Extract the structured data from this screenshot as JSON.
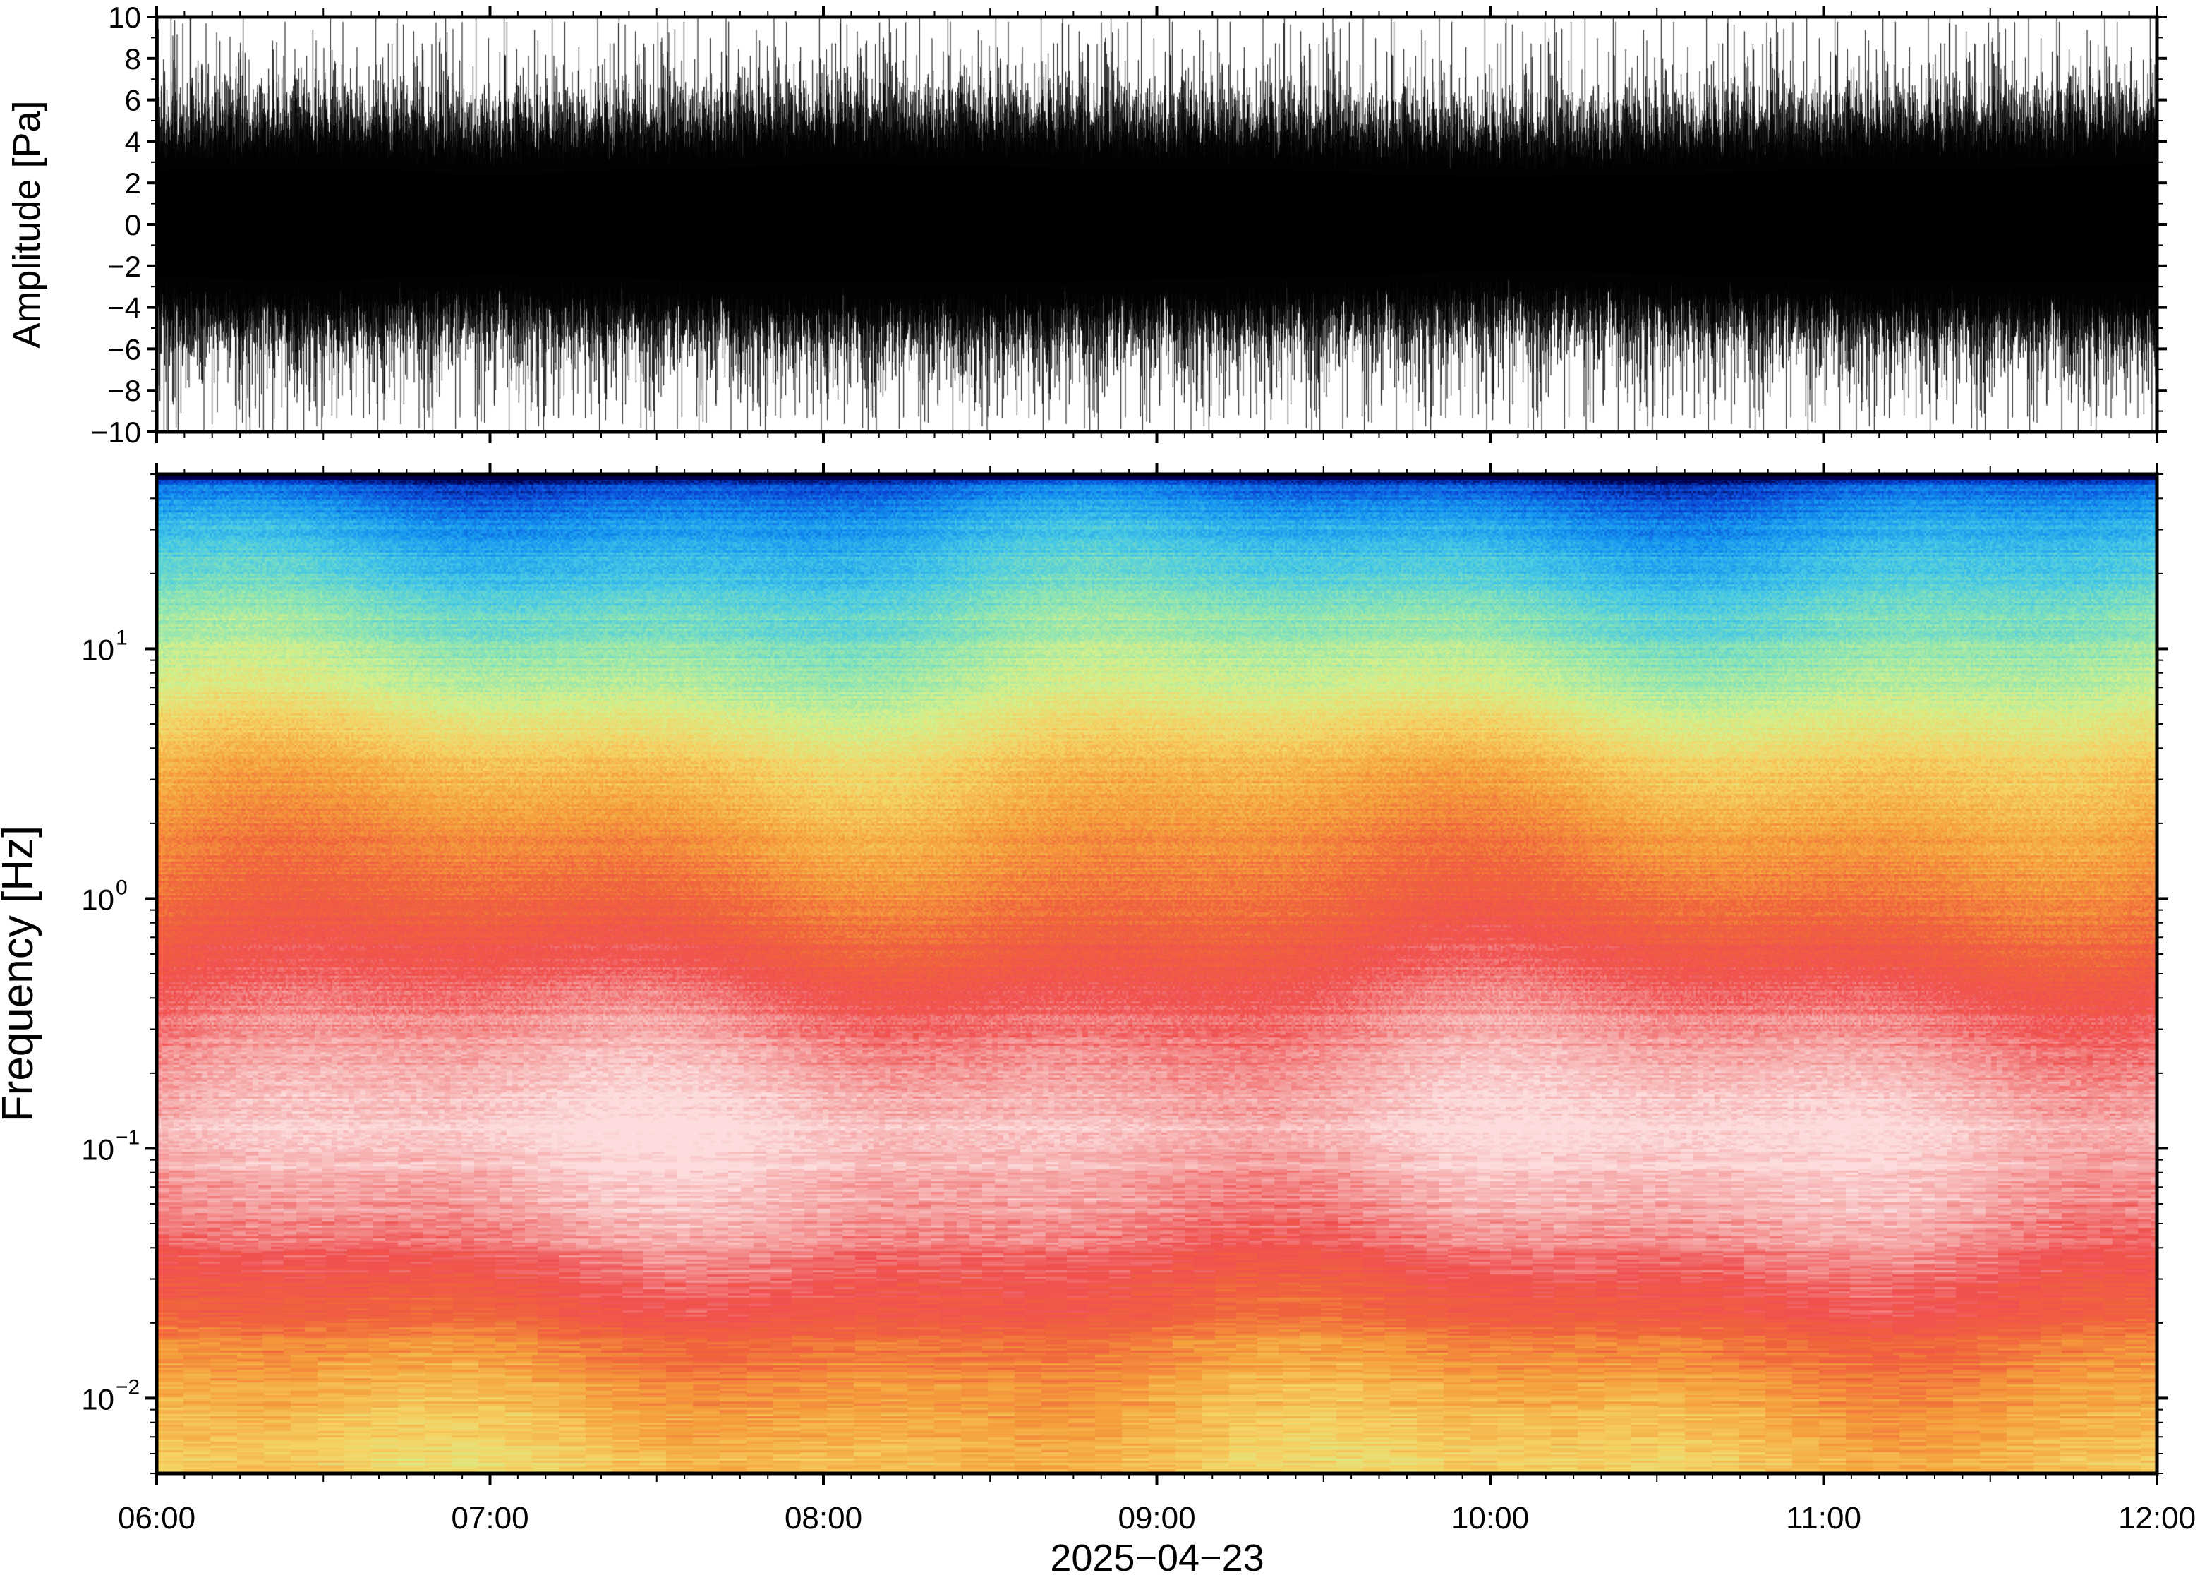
{
  "chart_data": [
    {
      "type": "line",
      "panel": "waveform",
      "ylabel": "Amplitude [Pa]",
      "ylim": [
        -10,
        10
      ],
      "yticks": [
        "10",
        "8",
        "6",
        "4",
        "2",
        "0",
        "−2",
        "−4",
        "−6",
        "−8",
        "−10"
      ],
      "ytick_values": [
        10,
        8,
        6,
        4,
        2,
        0,
        -2,
        -4,
        -6,
        -8,
        -10
      ],
      "x_range": [
        "06:00",
        "12:00"
      ],
      "envelope": {
        "times": [
          "06:00",
          "06:30",
          "07:00",
          "07:30",
          "08:00",
          "08:30",
          "09:00",
          "09:30",
          "10:00",
          "10:30",
          "11:00",
          "11:30",
          "12:00"
        ],
        "core_amplitude": [
          3.2,
          3.4,
          3.0,
          3.3,
          3.6,
          3.5,
          3.3,
          3.2,
          2.8,
          3.0,
          3.3,
          3.4,
          3.6
        ],
        "peak_amplitude": [
          10,
          10,
          10,
          10,
          10,
          10,
          10,
          10,
          10,
          10,
          10,
          10,
          10
        ]
      },
      "line_color": "#000000"
    },
    {
      "type": "heatmap",
      "panel": "spectrogram",
      "ylabel": "Frequency [Hz]",
      "xlabel": "2025−04−23",
      "yscale": "log",
      "ylim": [
        0.005,
        50
      ],
      "yticks": [
        {
          "value": 10,
          "base": "10",
          "exp": "1"
        },
        {
          "value": 1,
          "base": "10",
          "exp": "0"
        },
        {
          "value": 0.1,
          "base": "10",
          "exp": "−1"
        },
        {
          "value": 0.01,
          "base": "10",
          "exp": "−2"
        }
      ],
      "x_range": [
        "06:00",
        "12:00"
      ],
      "xticks": [
        "06:00",
        "07:00",
        "08:00",
        "09:00",
        "10:00",
        "11:00",
        "12:00"
      ],
      "colormap": [
        "#00004c",
        "#0a46d6",
        "#1495f0",
        "#46c8e6",
        "#8ce4b4",
        "#d4f08c",
        "#f5d264",
        "#f5a03c",
        "#f0643c",
        "#f05050",
        "#f5a0a0",
        "#fcdcdc"
      ],
      "band_profile": {
        "frequencies_hz": [
          50,
          40,
          20,
          10,
          5,
          2,
          1,
          0.5,
          0.2,
          0.1,
          0.05,
          0.03,
          0.02,
          0.01,
          0.005
        ],
        "dominant_color": [
          "#00004c",
          "#1495f0",
          "#46c8e6",
          "#8ce4b4",
          "#d4f08c",
          "#f5a03c",
          "#f0643c",
          "#f05050",
          "#f5a0a0",
          "#fcdcdc",
          "#f5a0a0",
          "#f05050",
          "#f05050",
          "#f5a03c",
          "#d4f08c"
        ]
      }
    }
  ]
}
